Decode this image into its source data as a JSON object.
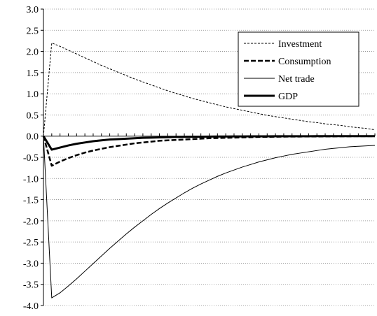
{
  "chart_data": {
    "type": "line",
    "title": "",
    "xlabel": "",
    "ylabel": "",
    "ylim": [
      -4.0,
      3.0
    ],
    "y_ticks": [
      "3.0",
      "2.5",
      "2.0",
      "1.5",
      "1.0",
      "0.5",
      "0.0",
      "-0.5",
      "-1.0",
      "-1.5",
      "-2.0",
      "-2.5",
      "-3.0",
      "-3.5",
      "-4.0"
    ],
    "grid": "horizontal dotted",
    "legend_position": "top-right",
    "x": [
      0,
      1,
      2,
      3,
      4,
      5,
      6,
      7,
      8,
      9,
      10,
      11,
      12,
      13,
      14,
      15,
      16,
      17,
      18,
      19,
      20,
      21,
      22,
      23,
      24,
      25,
      26,
      27,
      28,
      29,
      30,
      31,
      32,
      33,
      34,
      35,
      36,
      37,
      38,
      39,
      40
    ],
    "series": [
      {
        "name": "Investment",
        "style": "thin-dashed",
        "values": [
          0,
          2.2,
          2.12,
          2.03,
          1.94,
          1.85,
          1.76,
          1.67,
          1.59,
          1.51,
          1.43,
          1.35,
          1.28,
          1.21,
          1.14,
          1.07,
          1.01,
          0.95,
          0.89,
          0.84,
          0.79,
          0.74,
          0.69,
          0.65,
          0.61,
          0.57,
          0.53,
          0.49,
          0.46,
          0.43,
          0.4,
          0.37,
          0.34,
          0.32,
          0.29,
          0.27,
          0.25,
          0.22,
          0.2,
          0.18,
          0.15
        ]
      },
      {
        "name": "Consumption",
        "style": "thick-dashed",
        "values": [
          0,
          -0.7,
          -0.6,
          -0.52,
          -0.45,
          -0.39,
          -0.34,
          -0.3,
          -0.26,
          -0.23,
          -0.2,
          -0.17,
          -0.15,
          -0.13,
          -0.11,
          -0.1,
          -0.09,
          -0.08,
          -0.07,
          -0.06,
          -0.05,
          -0.045,
          -0.04,
          -0.035,
          -0.03,
          -0.025,
          -0.02,
          -0.018,
          -0.015,
          -0.013,
          -0.011,
          -0.01,
          -0.009,
          -0.008,
          -0.007,
          -0.006,
          -0.005,
          -0.004,
          -0.003,
          -0.002,
          -0.002
        ]
      },
      {
        "name": "Net trade",
        "style": "thin-solid",
        "values": [
          0,
          -3.82,
          -3.7,
          -3.54,
          -3.37,
          -3.19,
          -3.01,
          -2.83,
          -2.65,
          -2.48,
          -2.31,
          -2.15,
          -2.0,
          -1.85,
          -1.71,
          -1.58,
          -1.46,
          -1.34,
          -1.23,
          -1.13,
          -1.04,
          -0.95,
          -0.87,
          -0.8,
          -0.73,
          -0.67,
          -0.61,
          -0.56,
          -0.51,
          -0.47,
          -0.43,
          -0.4,
          -0.37,
          -0.34,
          -0.31,
          -0.29,
          -0.27,
          -0.25,
          -0.24,
          -0.23,
          -0.22
        ]
      },
      {
        "name": "GDP",
        "style": "thick-solid",
        "values": [
          0,
          -0.32,
          -0.27,
          -0.22,
          -0.18,
          -0.15,
          -0.12,
          -0.1,
          -0.08,
          -0.07,
          -0.06,
          -0.05,
          -0.04,
          -0.035,
          -0.03,
          -0.025,
          -0.02,
          -0.018,
          -0.015,
          -0.012,
          -0.01,
          -0.009,
          -0.008,
          -0.007,
          -0.006,
          -0.005,
          -0.004,
          -0.004,
          -0.003,
          -0.003,
          -0.002,
          -0.002,
          -0.002,
          -0.001,
          -0.001,
          -0.001,
          -0.001,
          -0.001,
          -0.001,
          -0.001,
          0
        ]
      }
    ]
  }
}
